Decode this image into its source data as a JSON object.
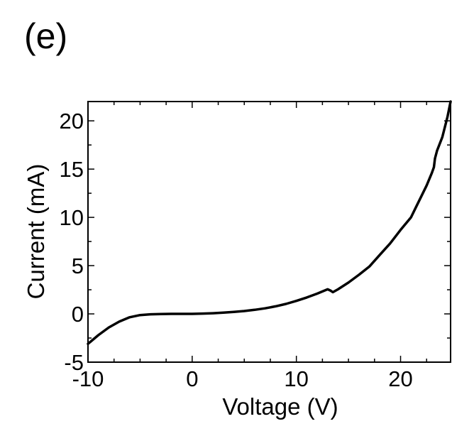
{
  "panel_label": "(e)",
  "chart_data": {
    "type": "line",
    "title": "",
    "xlabel": "Voltage (V)",
    "ylabel": "Current (mA)",
    "xlim": [
      -10,
      24.8
    ],
    "ylim": [
      -5,
      22
    ],
    "xticks": [
      -10,
      0,
      10,
      20
    ],
    "yticks": [
      -5,
      0,
      5,
      10,
      15,
      20
    ],
    "xtick_labels": [
      "-10",
      "0",
      "10",
      "20"
    ],
    "ytick_labels": [
      "-5",
      "0",
      "5",
      "10",
      "15",
      "20"
    ],
    "grid": false,
    "line_color": "#000000",
    "series": [
      {
        "x": [
          -10,
          -9,
          -8,
          -7,
          -6,
          -5,
          -4,
          -3,
          -2,
          -1,
          0,
          1,
          2,
          3,
          4,
          5,
          6,
          7,
          8,
          9,
          10,
          11,
          12,
          13,
          13.3,
          13.5,
          14,
          15,
          16,
          17,
          18,
          19,
          20,
          21,
          21.5,
          22,
          22.5,
          23,
          23.2,
          23.3,
          23.5,
          24,
          24.5,
          24.8
        ],
        "y": [
          -3.1,
          -2.2,
          -1.4,
          -0.8,
          -0.35,
          -0.12,
          -0.04,
          -0.01,
          0,
          0,
          0,
          0.03,
          0.07,
          0.13,
          0.2,
          0.3,
          0.42,
          0.58,
          0.78,
          1.03,
          1.35,
          1.7,
          2.1,
          2.55,
          2.4,
          2.25,
          2.55,
          3.25,
          4.05,
          4.9,
          6.1,
          7.3,
          8.7,
          10.0,
          11.1,
          12.2,
          13.3,
          14.6,
          15.2,
          16.1,
          16.9,
          18.3,
          20.4,
          22.0
        ]
      }
    ]
  }
}
